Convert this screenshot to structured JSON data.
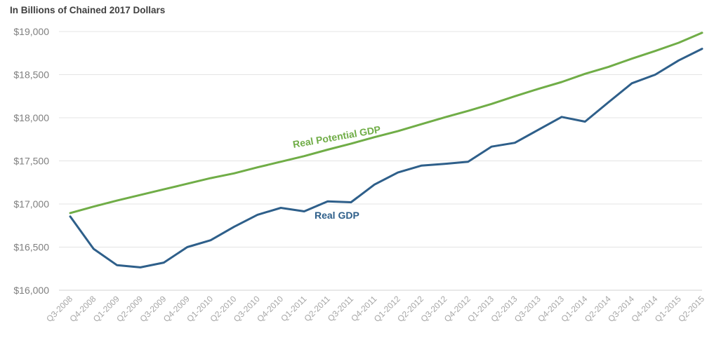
{
  "chart_data": {
    "type": "line",
    "title": "In Billions of Chained 2017 Dollars",
    "xlabel": "",
    "ylabel": "",
    "ylim": [
      16000,
      19000
    ],
    "yticks": [
      {
        "value": 19000,
        "label": "$19,000"
      },
      {
        "value": 18500,
        "label": "$18,500"
      },
      {
        "value": 18000,
        "label": "$18,000"
      },
      {
        "value": 17500,
        "label": "$17,500"
      },
      {
        "value": 17000,
        "label": "$17,000"
      },
      {
        "value": 16500,
        "label": "$16,500"
      },
      {
        "value": 16000,
        "label": "$16,000"
      }
    ],
    "grid": true,
    "categories": [
      "Q3-2008",
      "Q4-2008",
      "Q1-2009",
      "Q2-2009",
      "Q3-2009",
      "Q4-2009",
      "Q1-2010",
      "Q2-2010",
      "Q3-2010",
      "Q4-2010",
      "Q1-2011",
      "Q2-2011",
      "Q3-2011",
      "Q4-2011",
      "Q1-2012",
      "Q2-2012",
      "Q3-2012",
      "Q4-2012",
      "Q1-2013",
      "Q2-2013",
      "Q3-2013",
      "Q4-2013",
      "Q1-2014",
      "Q2-2014",
      "Q3-2014",
      "Q4-2014",
      "Q1-2015",
      "Q2-2015"
    ],
    "series": [
      {
        "name": "Real Potential GDP",
        "color": "#70ad47",
        "values": [
          16895,
          16970,
          17040,
          17105,
          17170,
          17235,
          17300,
          17355,
          17425,
          17490,
          17555,
          17630,
          17700,
          17775,
          17845,
          17925,
          18005,
          18080,
          18160,
          18250,
          18335,
          18415,
          18510,
          18590,
          18685,
          18775,
          18870,
          18985
        ]
      },
      {
        "name": "Real GDP",
        "color": "#2e5f8a",
        "values": [
          16855,
          16480,
          16290,
          16265,
          16320,
          16500,
          16580,
          16735,
          16875,
          16955,
          16915,
          17030,
          17020,
          17225,
          17365,
          17445,
          17465,
          17490,
          17665,
          17710,
          17860,
          18010,
          17955,
          18180,
          18400,
          18500,
          18665,
          18800
        ]
      }
    ]
  }
}
